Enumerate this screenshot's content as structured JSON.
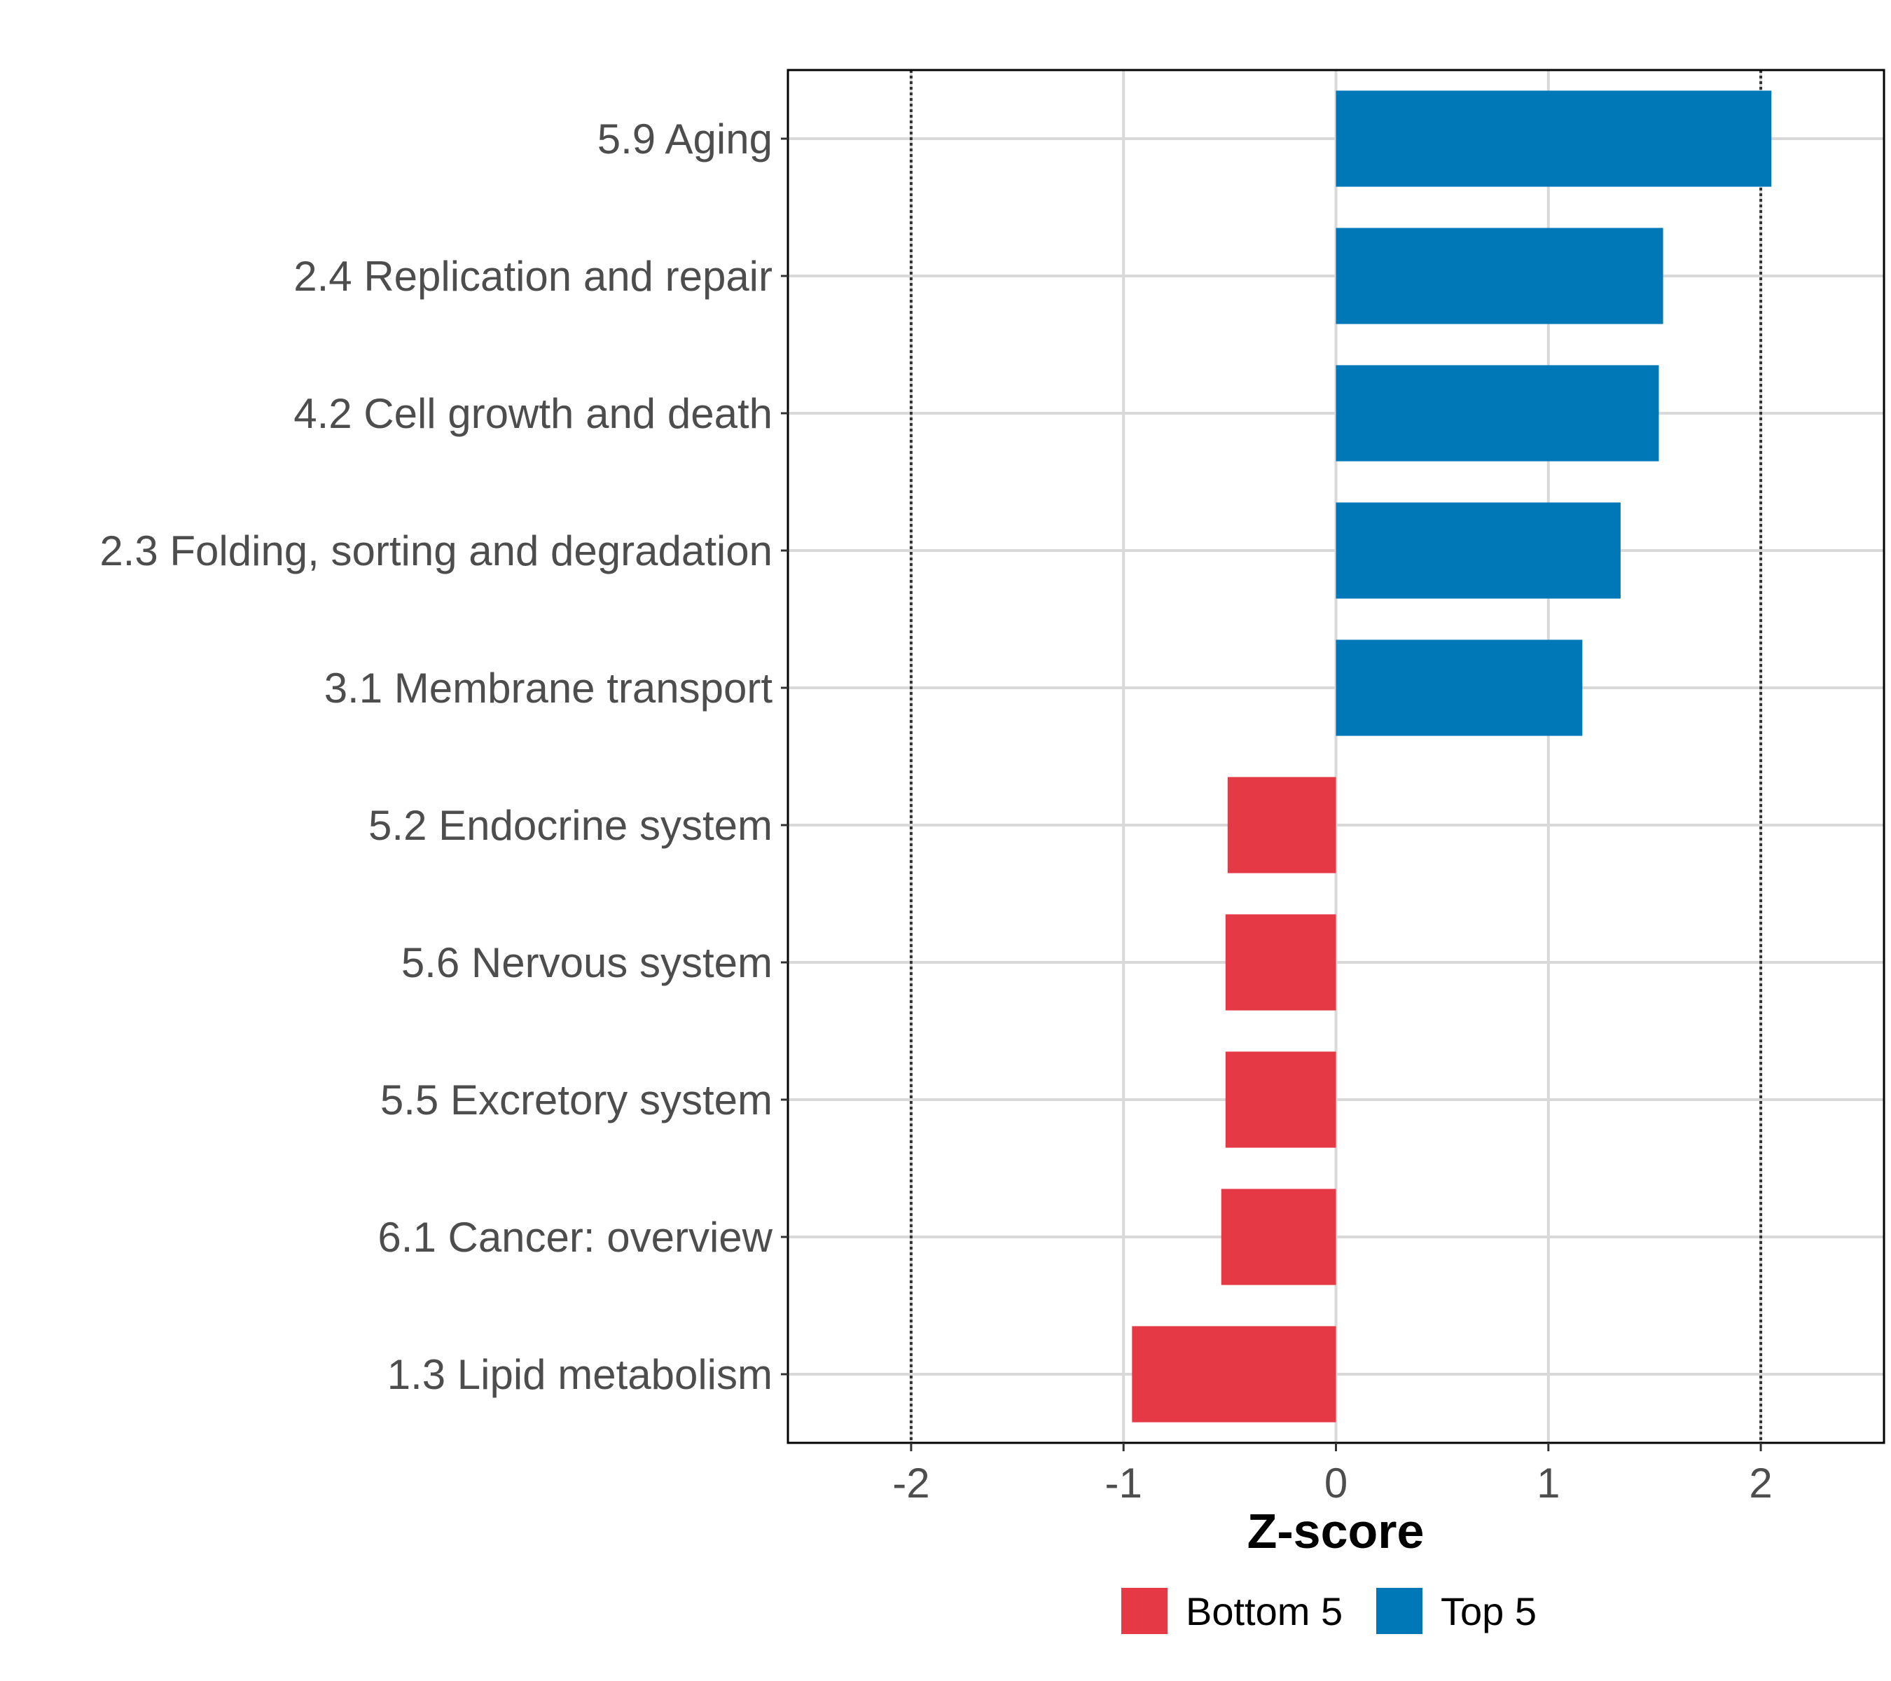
{
  "chart_data": {
    "type": "bar",
    "orientation": "horizontal",
    "title": "",
    "xlabel": "Z-score",
    "ylabel": "",
    "xlim": [
      -2.58,
      2.58
    ],
    "xticks": [
      -2,
      -1,
      0,
      1,
      2
    ],
    "xtick_labels": [
      "-2",
      "-1",
      "0",
      "1",
      "2"
    ],
    "reference_lines": [
      -2,
      2
    ],
    "grid": true,
    "legend_position": "bottom",
    "categories": [
      "5.9 Aging",
      "2.4 Replication and repair",
      "4.2 Cell growth and death",
      "2.3 Folding, sorting and degradation",
      "3.1 Membrane transport",
      "5.2 Endocrine system",
      "5.6 Nervous system",
      "5.5 Excretory system",
      "6.1 Cancer: overview",
      "1.3 Lipid metabolism"
    ],
    "values": [
      2.05,
      1.54,
      1.52,
      1.34,
      1.16,
      -0.51,
      -0.52,
      -0.52,
      -0.54,
      -0.96
    ],
    "groups": [
      "Top 5",
      "Top 5",
      "Top 5",
      "Top 5",
      "Top 5",
      "Bottom 5",
      "Bottom 5",
      "Bottom 5",
      "Bottom 5",
      "Bottom 5"
    ],
    "legend": [
      {
        "name": "Bottom 5",
        "color": "#e63946"
      },
      {
        "name": "Top 5",
        "color": "#0077b6"
      }
    ]
  }
}
